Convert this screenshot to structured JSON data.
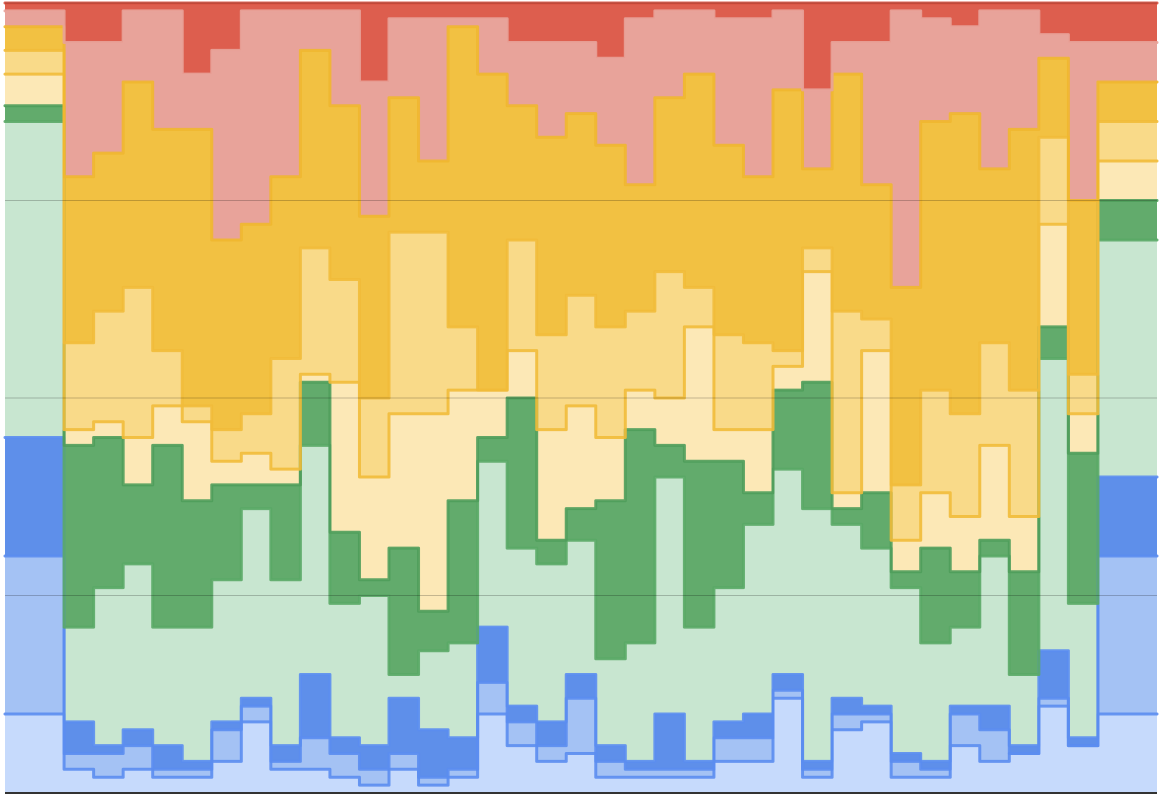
{
  "chart_data": {
    "type": "stacked-step-area",
    "x": [
      0,
      2,
      3,
      4,
      5,
      6,
      7,
      8,
      9,
      10,
      11,
      12,
      13,
      14,
      15,
      16,
      17,
      18,
      19,
      20,
      21,
      22,
      23,
      24,
      25,
      26,
      27,
      28,
      29,
      30,
      31,
      32,
      33,
      34,
      35,
      36,
      37
    ],
    "xlim": [
      0,
      39
    ],
    "ylim": [
      0,
      100
    ],
    "yticks": [
      0,
      25,
      50,
      75,
      100
    ],
    "grid": true,
    "series": [
      {
        "color": "#c6dafc",
        "stroke": "#5b8def",
        "values": [
          10,
          3,
          2,
          3,
          2,
          2,
          4,
          9,
          3,
          3,
          2,
          1,
          3,
          1,
          2,
          10,
          6,
          4,
          5,
          2,
          2,
          2,
          2,
          4,
          4,
          12,
          2,
          8,
          9,
          2,
          2,
          6,
          4,
          5,
          11,
          6,
          10
        ]
      },
      {
        "color": "#a4c2f4",
        "stroke": "#5b8def",
        "values": [
          20,
          2,
          3,
          3,
          1,
          1,
          4,
          2,
          1,
          4,
          3,
          2,
          2,
          1,
          1,
          4,
          3,
          2,
          7,
          2,
          1,
          1,
          1,
          3,
          3,
          1,
          1,
          2,
          1,
          2,
          1,
          4,
          4,
          0,
          1,
          0,
          20
        ]
      },
      {
        "color": "#5e8fea",
        "stroke": "#5b8def",
        "values": [
          15,
          4,
          1,
          2,
          3,
          1,
          1,
          1,
          2,
          8,
          2,
          3,
          7,
          6,
          4,
          7,
          2,
          3,
          3,
          2,
          1,
          7,
          1,
          2,
          3,
          2,
          1,
          2,
          1,
          1,
          1,
          1,
          3,
          1,
          6,
          1,
          10
        ]
      },
      {
        "color": "#c8e6d0",
        "stroke": "#5aa866",
        "values": [
          40,
          12,
          20,
          21,
          15,
          17,
          18,
          24,
          21,
          29,
          17,
          19,
          3,
          10,
          12,
          21,
          20,
          20,
          17,
          11,
          15,
          30,
          17,
          17,
          24,
          26,
          32,
          22,
          20,
          21,
          15,
          10,
          19,
          9,
          37,
          17,
          30
        ]
      },
      {
        "color": "#62ab6c",
        "stroke": "#4f9d5b",
        "values": [
          2,
          23,
          19,
          10,
          23,
          16,
          12,
          3,
          12,
          8,
          9,
          2,
          16,
          5,
          18,
          3,
          19,
          3,
          4,
          20,
          27,
          4,
          21,
          16,
          4,
          10,
          16,
          2,
          7,
          2,
          12,
          7,
          2,
          13,
          4,
          19,
          5
        ]
      },
      {
        "color": "#fce8b6",
        "stroke": "#f1bb3a",
        "values": [
          4,
          2,
          2,
          6,
          5,
          10,
          3,
          4,
          2,
          1,
          19,
          13,
          17,
          25,
          14,
          6,
          6,
          14,
          13,
          8,
          5,
          6,
          17,
          4,
          8,
          3,
          14,
          2,
          18,
          4,
          7,
          7,
          12,
          7,
          13,
          5,
          5
        ]
      },
      {
        "color": "#f9da89",
        "stroke": "#f1bb3a",
        "values": [
          3,
          11,
          14,
          19,
          7,
          2,
          4,
          5,
          14,
          16,
          13,
          10,
          23,
          23,
          8,
          0,
          14,
          12,
          14,
          14,
          10,
          16,
          5,
          12,
          11,
          2,
          3,
          23,
          4,
          7,
          13,
          13,
          13,
          16,
          11,
          5,
          5
        ]
      },
      {
        "color": "#f2c142",
        "stroke": "#f0b72f",
        "values": [
          3,
          21,
          20,
          26,
          28,
          35,
          24,
          24,
          23,
          25,
          22,
          23,
          17,
          9,
          38,
          40,
          17,
          25,
          23,
          23,
          16,
          22,
          27,
          24,
          21,
          33,
          10,
          30,
          17,
          25,
          34,
          38,
          22,
          33,
          10,
          22,
          5
        ]
      },
      {
        "color": "#e8a39a",
        "stroke": "#e8a39a",
        "values": [
          2,
          17,
          14,
          9,
          15,
          7,
          24,
          27,
          21,
          5,
          12,
          17,
          10,
          18,
          1,
          7,
          8,
          12,
          9,
          11,
          21,
          11,
          8,
          16,
          20,
          10,
          10,
          4,
          18,
          35,
          13,
          11,
          20,
          15,
          3,
          20,
          5
        ]
      },
      {
        "color": "#dd5e4e",
        "stroke": "#d9503f",
        "values": [
          1,
          5,
          5,
          1,
          1,
          9,
          6,
          1,
          1,
          1,
          1,
          10,
          2,
          2,
          2,
          2,
          5,
          5,
          5,
          7,
          2,
          1,
          1,
          2,
          2,
          1,
          11,
          5,
          5,
          1,
          2,
          3,
          1,
          1,
          4,
          5,
          5
        ]
      }
    ]
  }
}
